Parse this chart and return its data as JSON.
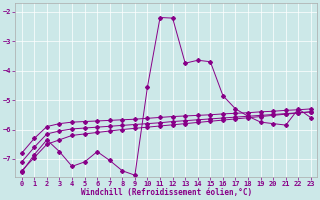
{
  "xlabel": "Windchill (Refroidissement éolien,°C)",
  "background_color": "#cce8e8",
  "line_color": "#880088",
  "xlim": [
    -0.5,
    23.5
  ],
  "ylim": [
    -7.6,
    -1.7
  ],
  "yticks": [
    -7,
    -6,
    -5,
    -4,
    -3,
    -2
  ],
  "xticks": [
    0,
    1,
    2,
    3,
    4,
    5,
    6,
    7,
    8,
    9,
    10,
    11,
    12,
    13,
    14,
    15,
    16,
    17,
    18,
    19,
    20,
    21,
    22,
    23
  ],
  "series1_x": [
    0,
    1,
    2,
    3,
    4,
    5,
    6,
    7,
    8,
    9,
    10,
    11,
    12,
    13,
    14,
    15,
    16,
    17,
    18,
    19,
    20,
    21,
    22,
    23
  ],
  "series1_y": [
    -7.45,
    -6.85,
    -6.35,
    -6.75,
    -7.25,
    -7.1,
    -6.75,
    -7.05,
    -7.4,
    -7.55,
    -4.55,
    -2.2,
    -2.22,
    -3.75,
    -3.65,
    -3.7,
    -4.85,
    -5.3,
    -5.55,
    -5.75,
    -5.8,
    -5.85,
    -5.3,
    -5.6
  ],
  "series2_x": [
    0,
    1,
    2,
    3,
    4,
    5,
    6,
    7,
    8,
    9,
    10,
    11,
    12,
    13,
    14,
    15,
    16,
    17,
    18,
    19,
    20,
    21,
    22,
    23
  ],
  "series2_y": [
    -6.8,
    -6.3,
    -5.9,
    -5.8,
    -5.75,
    -5.73,
    -5.71,
    -5.69,
    -5.67,
    -5.65,
    -5.62,
    -5.59,
    -5.56,
    -5.54,
    -5.52,
    -5.5,
    -5.47,
    -5.45,
    -5.43,
    -5.4,
    -5.38,
    -5.35,
    -5.33,
    -5.3
  ],
  "series3_x": [
    0,
    1,
    2,
    3,
    4,
    5,
    6,
    7,
    8,
    9,
    10,
    11,
    12,
    13,
    14,
    15,
    16,
    17,
    18,
    19,
    20,
    21,
    22,
    23
  ],
  "series3_y": [
    -7.1,
    -6.6,
    -6.15,
    -6.05,
    -5.98,
    -5.95,
    -5.92,
    -5.89,
    -5.86,
    -5.83,
    -5.8,
    -5.77,
    -5.73,
    -5.7,
    -5.67,
    -5.64,
    -5.61,
    -5.58,
    -5.55,
    -5.52,
    -5.49,
    -5.46,
    -5.43,
    -5.4
  ],
  "series4_x": [
    0,
    1,
    2,
    3,
    4,
    5,
    6,
    7,
    8,
    9,
    10,
    11,
    12,
    13,
    14,
    15,
    16,
    17,
    18,
    19,
    20,
    21,
    22,
    23
  ],
  "series4_y": [
    -7.4,
    -6.95,
    -6.5,
    -6.35,
    -6.2,
    -6.15,
    -6.1,
    -6.05,
    -6.0,
    -5.96,
    -5.92,
    -5.88,
    -5.84,
    -5.8,
    -5.76,
    -5.72,
    -5.68,
    -5.64,
    -5.6,
    -5.56,
    -5.52,
    -5.48,
    -5.44,
    -5.4
  ]
}
